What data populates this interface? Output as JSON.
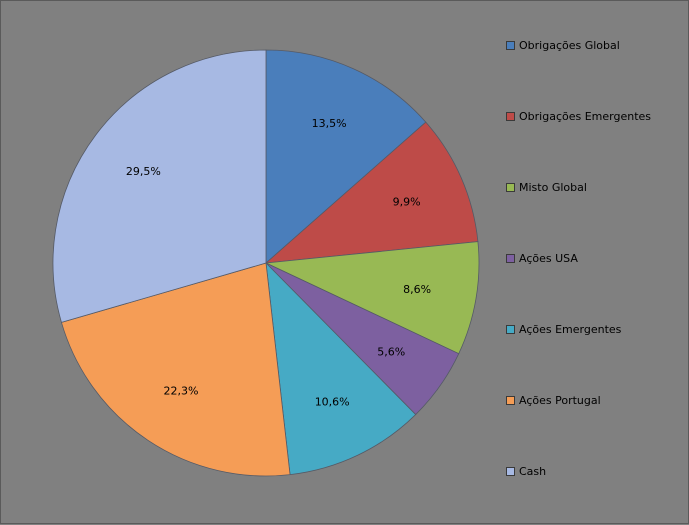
{
  "chart_data": {
    "type": "pie",
    "title": "",
    "categories": [
      "Obrigações Global",
      "Obrigações Emergentes",
      "Misto Global",
      "Ações USA",
      "Ações Emergentes",
      "Ações Portugal",
      "Cash"
    ],
    "values": [
      13.5,
      9.9,
      8.6,
      5.6,
      10.6,
      22.3,
      29.5
    ],
    "labels": [
      "13,5%",
      "9,9%",
      "8,6%",
      "5,6%",
      "10,6%",
      "22,3%",
      "29,5%"
    ],
    "colors": [
      "#4a7ebb",
      "#be4b48",
      "#98b954",
      "#7d60a0",
      "#46aac5",
      "#f59d56",
      "#a7b9e3"
    ],
    "start_angle_deg": 0,
    "direction": "clockwise",
    "legend_position": "right"
  }
}
